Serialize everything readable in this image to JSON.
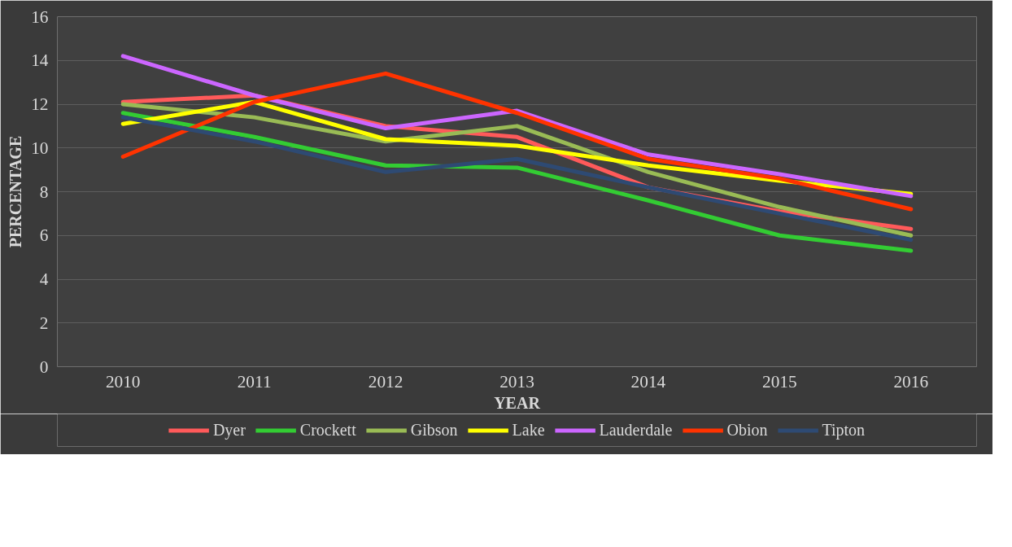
{
  "chart_data": {
    "type": "line",
    "xlabel": "YEAR",
    "ylabel": "PERCENTAGE",
    "categories": [
      "2010",
      "2011",
      "2012",
      "2013",
      "2014",
      "2015",
      "2016"
    ],
    "ylim": [
      0,
      16
    ],
    "yticks": [
      0,
      2,
      4,
      6,
      8,
      10,
      12,
      14,
      16
    ],
    "grid": "y",
    "legend": "bottom",
    "marker": "none",
    "line_style": "solid",
    "series": [
      {
        "name": "Dyer",
        "color": "#ff5a5a",
        "values": [
          12.1,
          12.4,
          11.0,
          10.5,
          8.2,
          7.1,
          6.3
        ]
      },
      {
        "name": "Crockett",
        "color": "#33cc33",
        "values": [
          11.6,
          10.5,
          9.2,
          9.1,
          7.6,
          6.0,
          5.3
        ]
      },
      {
        "name": "Gibson",
        "color": "#99bb55",
        "values": [
          12.0,
          11.4,
          10.3,
          11.0,
          8.9,
          7.3,
          6.0
        ]
      },
      {
        "name": "Lake",
        "color": "#ffff00",
        "values": [
          11.1,
          12.1,
          10.4,
          10.1,
          9.2,
          8.5,
          7.9
        ]
      },
      {
        "name": "Lauderdale",
        "color": "#cc66ff",
        "values": [
          14.2,
          12.4,
          10.9,
          11.7,
          9.7,
          8.8,
          7.8
        ]
      },
      {
        "name": "Obion",
        "color": "#ff3300",
        "values": [
          9.6,
          12.1,
          13.4,
          11.6,
          9.5,
          8.6,
          7.2
        ]
      },
      {
        "name": "Tipton",
        "color": "#2e4a73",
        "values": [
          11.4,
          10.3,
          8.9,
          9.5,
          8.2,
          7.0,
          5.8
        ]
      }
    ]
  }
}
